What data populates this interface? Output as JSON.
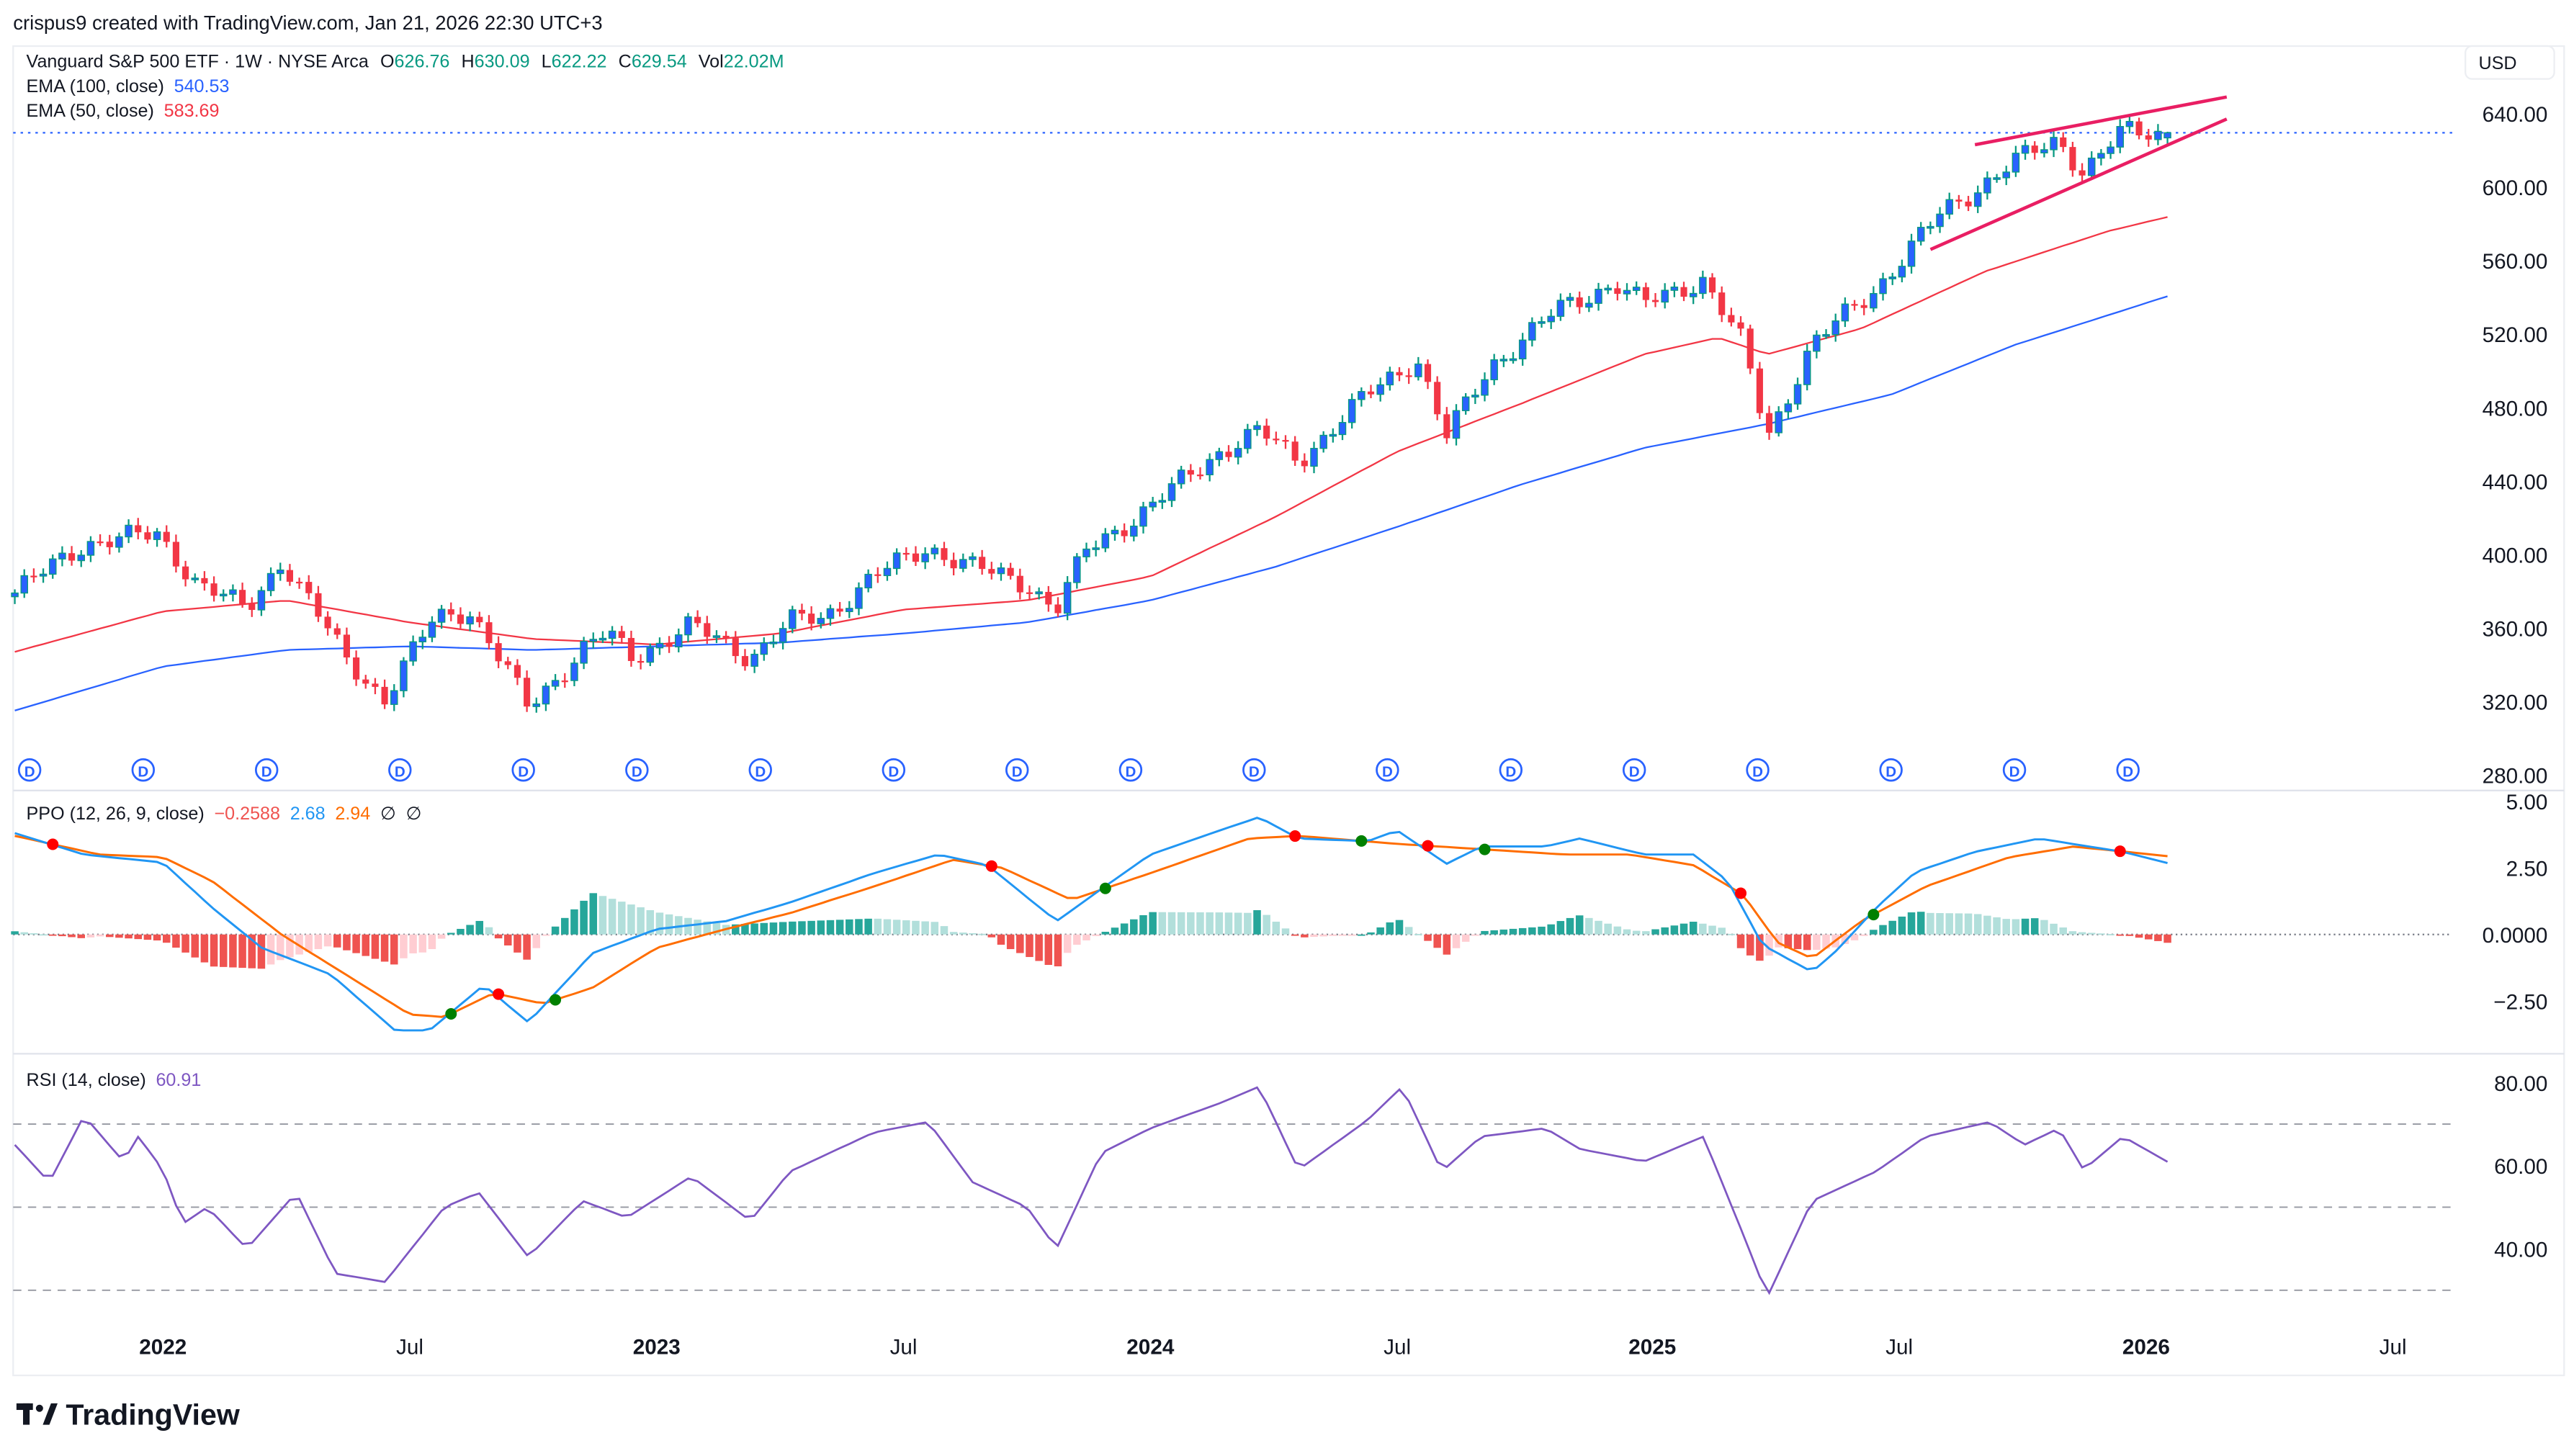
{
  "header": {
    "caption": "crispus9 created with TradingView.com, Jan 21, 2026 22:30 UTC+3"
  },
  "legend": {
    "symbol": "Vanguard S&P 500 ETF · 1W · NYSE Arca",
    "o_label": "O",
    "o": "626.76",
    "h_label": "H",
    "h": "630.09",
    "l_label": "L",
    "l": "622.22",
    "c_label": "C",
    "c": "629.54",
    "vol_label": "Vol",
    "vol": "22.02M",
    "ema100_label": "EMA (100, close)",
    "ema100": "540.53",
    "ema50_label": "EMA (50, close)",
    "ema50": "583.69",
    "ppo_label": "PPO (12, 26, 9, close)",
    "ppo_hist": "−0.2588",
    "ppo": "2.68",
    "ppo_signal": "2.94",
    "ppo_na1": "∅",
    "ppo_na2": "∅",
    "rsi_label": "RSI (14, close)",
    "rsi": "60.91"
  },
  "currency": "USD",
  "colors": {
    "up_body": "#2962ff",
    "up_wick": "#089981",
    "down": "#f23645",
    "ema100": "#2962ff",
    "ema50": "#f23645",
    "ppo": "#2196f3",
    "signal": "#ff6d00",
    "rsi": "#7e57c2",
    "trendline": "#e91e63",
    "hist_up_strong": "#26a69a",
    "hist_up_weak": "#b2dfdb",
    "hist_dn_strong": "#ef5350",
    "hist_dn_weak": "#ffcdd2"
  },
  "price_axis": [
    "640.00",
    "600.00",
    "560.00",
    "520.00",
    "480.00",
    "440.00",
    "400.00",
    "360.00",
    "320.00",
    "280.00"
  ],
  "ppo_axis": [
    "5.00",
    "2.50",
    "0.0000",
    "−2.50"
  ],
  "rsi_axis": [
    "80.00",
    "60.00",
    "40.00"
  ],
  "time_axis": [
    "2022",
    "Jul",
    "2023",
    "Jul",
    "2024",
    "Jul",
    "2025",
    "Jul",
    "2026",
    "Jul"
  ],
  "dividend_label": "D",
  "logo": {
    "text": "TradingView"
  },
  "chart_data": [
    {
      "type": "candlestick",
      "title": "Vanguard S&P 500 ETF · 1W · NYSE Arca",
      "x_unit": "year",
      "ylim": [
        280,
        650
      ],
      "last": {
        "open": 626.76,
        "high": 630.09,
        "low": 622.22,
        "close": 629.54
      },
      "close_approx": [
        [
          2021.7,
          379
        ],
        [
          2021.84,
          406
        ],
        [
          2021.99,
          411
        ],
        [
          2022.07,
          384
        ],
        [
          2022.17,
          370
        ],
        [
          2022.24,
          397
        ],
        [
          2022.37,
          344
        ],
        [
          2022.45,
          321
        ],
        [
          2022.55,
          366
        ],
        [
          2022.62,
          370
        ],
        [
          2022.74,
          317
        ],
        [
          2022.85,
          348
        ],
        [
          2022.9,
          357
        ],
        [
          2022.95,
          344
        ],
        [
          2023.07,
          361
        ],
        [
          2023.19,
          344
        ],
        [
          2023.27,
          363
        ],
        [
          2023.34,
          366
        ],
        [
          2023.44,
          388
        ],
        [
          2023.55,
          404
        ],
        [
          2023.64,
          393
        ],
        [
          2023.75,
          384
        ],
        [
          2023.81,
          370
        ],
        [
          2023.87,
          402
        ],
        [
          2024.0,
          426
        ],
        [
          2024.14,
          456
        ],
        [
          2024.22,
          467
        ],
        [
          2024.3,
          451
        ],
        [
          2024.44,
          487
        ],
        [
          2024.54,
          507
        ],
        [
          2024.6,
          464
        ],
        [
          2024.69,
          503
        ],
        [
          2024.82,
          532
        ],
        [
          2024.94,
          548
        ],
        [
          2025.0,
          536
        ],
        [
          2025.12,
          550
        ],
        [
          2025.2,
          514
        ],
        [
          2025.25,
          464
        ],
        [
          2025.34,
          514
        ],
        [
          2025.47,
          545
        ],
        [
          2025.6,
          585
        ],
        [
          2025.74,
          612
        ],
        [
          2025.84,
          626
        ],
        [
          2025.89,
          608
        ],
        [
          2025.97,
          630
        ],
        [
          2026.06,
          629.54
        ]
      ],
      "ema100": [
        [
          2021.7,
          315
        ],
        [
          2022.0,
          339
        ],
        [
          2022.25,
          348
        ],
        [
          2022.5,
          350
        ],
        [
          2022.75,
          348
        ],
        [
          2023.0,
          350
        ],
        [
          2023.25,
          352
        ],
        [
          2023.5,
          357
        ],
        [
          2023.75,
          363
        ],
        [
          2024.0,
          375
        ],
        [
          2024.25,
          393
        ],
        [
          2024.5,
          415
        ],
        [
          2024.75,
          438
        ],
        [
          2025.0,
          458
        ],
        [
          2025.25,
          471
        ],
        [
          2025.5,
          487
        ],
        [
          2025.75,
          514
        ],
        [
          2026.06,
          540.53
        ]
      ],
      "ema50": [
        [
          2021.7,
          347
        ],
        [
          2022.0,
          369
        ],
        [
          2022.25,
          375
        ],
        [
          2022.5,
          363
        ],
        [
          2022.75,
          354
        ],
        [
          2023.0,
          351
        ],
        [
          2023.25,
          357
        ],
        [
          2023.5,
          370
        ],
        [
          2023.75,
          375
        ],
        [
          2024.0,
          388
        ],
        [
          2024.25,
          420
        ],
        [
          2024.5,
          456
        ],
        [
          2024.75,
          482
        ],
        [
          2025.0,
          509
        ],
        [
          2025.15,
          518
        ],
        [
          2025.25,
          509
        ],
        [
          2025.44,
          523
        ],
        [
          2025.69,
          554
        ],
        [
          2025.94,
          576
        ],
        [
          2026.06,
          583.69
        ]
      ],
      "trendlines": [
        [
          [
            2025.67,
            623
          ],
          [
            2026.18,
            649
          ]
        ],
        [
          [
            2025.58,
            566
          ],
          [
            2026.18,
            637
          ]
        ]
      ],
      "dividends": [
        2021.73,
        2021.96,
        2022.21,
        2022.48,
        2022.73,
        2022.96,
        2023.21,
        2023.48,
        2023.73,
        2023.96,
        2024.21,
        2024.48,
        2024.73,
        2024.98,
        2025.23,
        2025.5,
        2025.75,
        2025.98
      ]
    },
    {
      "type": "line",
      "title": "PPO (12, 26, 9, close)",
      "ylim": [
        -4,
        5
      ],
      "series": [
        {
          "name": "PPO",
          "points": [
            [
              2021.7,
              3.8
            ],
            [
              2021.84,
              3.0
            ],
            [
              2022.0,
              2.7
            ],
            [
              2022.1,
              1.0
            ],
            [
              2022.2,
              -0.5
            ],
            [
              2022.34,
              -1.5
            ],
            [
              2022.47,
              -3.6
            ],
            [
              2022.54,
              -3.6
            ],
            [
              2022.65,
              -1.9
            ],
            [
              2022.74,
              -3.3
            ],
            [
              2022.87,
              -0.7
            ],
            [
              2023.0,
              0.2
            ],
            [
              2023.14,
              0.5
            ],
            [
              2023.27,
              1.2
            ],
            [
              2023.44,
              2.3
            ],
            [
              2023.57,
              3.0
            ],
            [
              2023.67,
              2.6
            ],
            [
              2023.75,
              1.4
            ],
            [
              2023.81,
              0.5
            ],
            [
              2023.9,
              1.7
            ],
            [
              2024.0,
              3.0
            ],
            [
              2024.14,
              3.9
            ],
            [
              2024.22,
              4.4
            ],
            [
              2024.3,
              3.6
            ],
            [
              2024.44,
              3.5
            ],
            [
              2024.5,
              3.9
            ],
            [
              2024.6,
              2.65
            ],
            [
              2024.67,
              3.3
            ],
            [
              2024.8,
              3.3
            ],
            [
              2024.87,
              3.6
            ],
            [
              2025.0,
              3.0
            ],
            [
              2025.1,
              3.0
            ],
            [
              2025.17,
              2.0
            ],
            [
              2025.24,
              -0.4
            ],
            [
              2025.34,
              -1.4
            ],
            [
              2025.39,
              -0.6
            ],
            [
              2025.47,
              1.0
            ],
            [
              2025.55,
              2.35
            ],
            [
              2025.67,
              3.1
            ],
            [
              2025.8,
              3.6
            ],
            [
              2025.9,
              3.3
            ],
            [
              2025.97,
              3.1
            ],
            [
              2026.06,
              2.68
            ]
          ]
        },
        {
          "name": "Signal",
          "points": [
            [
              2021.7,
              3.7
            ],
            [
              2021.87,
              3.0
            ],
            [
              2022.0,
              2.9
            ],
            [
              2022.1,
              2.0
            ],
            [
              2022.24,
              0.0
            ],
            [
              2022.37,
              -1.5
            ],
            [
              2022.5,
              -3.0
            ],
            [
              2022.57,
              -3.1
            ],
            [
              2022.67,
              -2.2
            ],
            [
              2022.77,
              -2.6
            ],
            [
              2022.87,
              -2.0
            ],
            [
              2023.0,
              -0.5
            ],
            [
              2023.14,
              0.2
            ],
            [
              2023.27,
              0.8
            ],
            [
              2023.44,
              1.8
            ],
            [
              2023.6,
              2.8
            ],
            [
              2023.7,
              2.5
            ],
            [
              2023.84,
              1.3
            ],
            [
              2024.0,
              2.3
            ],
            [
              2024.2,
              3.6
            ],
            [
              2024.3,
              3.7
            ],
            [
              2024.5,
              3.4
            ],
            [
              2024.67,
              3.2
            ],
            [
              2024.84,
              3.0
            ],
            [
              2024.97,
              3.0
            ],
            [
              2025.1,
              2.6
            ],
            [
              2025.2,
              1.5
            ],
            [
              2025.27,
              -0.3
            ],
            [
              2025.34,
              -0.9
            ],
            [
              2025.44,
              0.5
            ],
            [
              2025.57,
              1.8
            ],
            [
              2025.74,
              2.9
            ],
            [
              2025.87,
              3.3
            ],
            [
              2026.06,
              2.94
            ]
          ]
        }
      ]
    },
    {
      "type": "line",
      "title": "RSI (14, close)",
      "ylim": [
        25,
        82
      ],
      "bands": [
        70,
        50,
        30
      ],
      "points": [
        [
          2021.7,
          65
        ],
        [
          2021.77,
          56
        ],
        [
          2021.84,
          72
        ],
        [
          2021.92,
          61
        ],
        [
          2021.95,
          67
        ],
        [
          2022.0,
          59
        ],
        [
          2022.04,
          46
        ],
        [
          2022.09,
          50
        ],
        [
          2022.17,
          40
        ],
        [
          2022.27,
          53.5
        ],
        [
          2022.35,
          34
        ],
        [
          2022.45,
          32
        ],
        [
          2022.57,
          50
        ],
        [
          2022.64,
          53.5
        ],
        [
          2022.74,
          38
        ],
        [
          2022.85,
          51.5
        ],
        [
          2022.94,
          47.5
        ],
        [
          2023.07,
          57.4
        ],
        [
          2023.19,
          46.7
        ],
        [
          2023.27,
          58.6
        ],
        [
          2023.44,
          68
        ],
        [
          2023.55,
          70.5
        ],
        [
          2023.64,
          56
        ],
        [
          2023.75,
          50
        ],
        [
          2023.81,
          40
        ],
        [
          2023.9,
          63
        ],
        [
          2024.0,
          69
        ],
        [
          2024.14,
          75
        ],
        [
          2024.22,
          79
        ],
        [
          2024.3,
          59
        ],
        [
          2024.44,
          71
        ],
        [
          2024.51,
          79
        ],
        [
          2024.59,
          58.6
        ],
        [
          2024.67,
          67
        ],
        [
          2024.8,
          69
        ],
        [
          2024.87,
          64
        ],
        [
          2025.0,
          61
        ],
        [
          2025.12,
          67
        ],
        [
          2025.2,
          43.6
        ],
        [
          2025.25,
          28.5
        ],
        [
          2025.34,
          51.5
        ],
        [
          2025.47,
          58.6
        ],
        [
          2025.57,
          67
        ],
        [
          2025.7,
          70.5
        ],
        [
          2025.77,
          65
        ],
        [
          2025.84,
          69
        ],
        [
          2025.89,
          59
        ],
        [
          2025.97,
          67
        ],
        [
          2026.06,
          60.91
        ]
      ]
    }
  ]
}
